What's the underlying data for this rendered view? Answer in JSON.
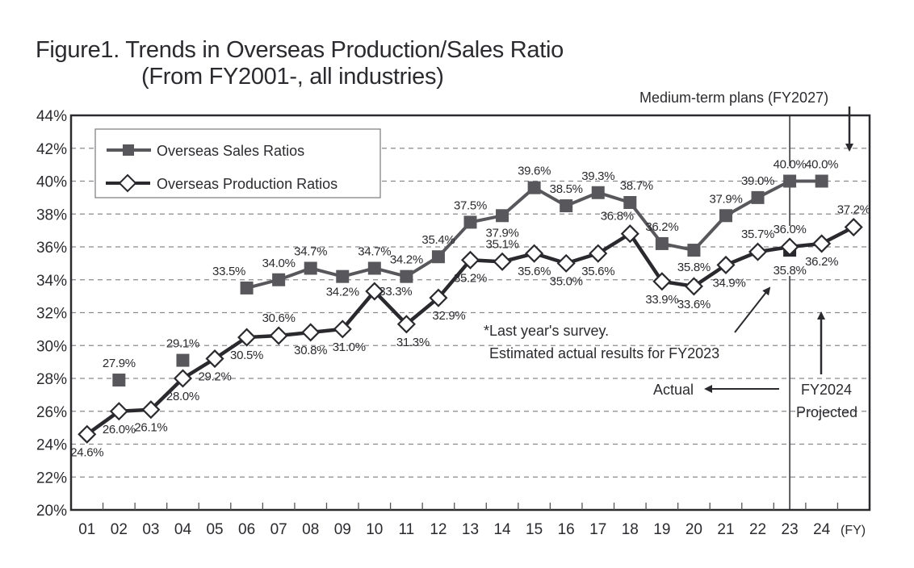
{
  "chart_data": {
    "type": "line",
    "title": "Figure1. Trends in Overseas Production/Sales Ratio",
    "subtitle": "(From FY2001-, all industries)",
    "xlabel": "(FY)",
    "ylabel": "",
    "ylim": [
      20,
      44
    ],
    "yticks": [
      20,
      22,
      24,
      26,
      28,
      30,
      32,
      34,
      36,
      38,
      40,
      42,
      44
    ],
    "ytick_suffix": "%",
    "grid": "horizontal dashed",
    "categories": [
      "01",
      "02",
      "03",
      "04",
      "05",
      "06",
      "07",
      "08",
      "09",
      "10",
      "11",
      "12",
      "13",
      "14",
      "15",
      "16",
      "17",
      "18",
      "19",
      "20",
      "21",
      "22",
      "23",
      "24",
      "FY2027"
    ],
    "x_tick_labels": [
      "01",
      "02",
      "03",
      "04",
      "05",
      "06",
      "07",
      "08",
      "09",
      "10",
      "11",
      "12",
      "13",
      "14",
      "15",
      "16",
      "17",
      "18",
      "19",
      "20",
      "21",
      "22",
      "23",
      "24"
    ],
    "series": [
      {
        "name": "Overseas Sales Ratios",
        "marker": "square",
        "color": "#58585c",
        "values": [
          null,
          27.9,
          null,
          29.1,
          null,
          33.5,
          34.0,
          34.7,
          34.2,
          34.7,
          34.2,
          35.4,
          37.5,
          37.9,
          39.6,
          38.5,
          39.3,
          38.7,
          36.2,
          35.8,
          37.9,
          39.0,
          40.0,
          40.0,
          null
        ],
        "labels": [
          null,
          "27.9%",
          null,
          "29.1%",
          null,
          "33.5%",
          "34.0%",
          "34.7%",
          "34.2%",
          "34.7%",
          "34.2%",
          "35.4%",
          "37.5%",
          "37.9%",
          "39.6%",
          "38.5%",
          "39.3%",
          "38.7%",
          "36.2%",
          "35.8%",
          "37.9%",
          "39.0%",
          "40.0%",
          "40.0%",
          null
        ]
      },
      {
        "name": "Overseas Production Ratios",
        "marker": "open-diamond",
        "color": "#2a2a2e",
        "values": [
          24.6,
          26.0,
          26.1,
          28.0,
          29.2,
          30.5,
          30.6,
          30.8,
          31.0,
          33.3,
          31.3,
          32.9,
          35.2,
          35.1,
          35.6,
          35.0,
          35.6,
          36.8,
          33.9,
          33.6,
          34.9,
          35.7,
          36.0,
          36.2,
          37.2
        ],
        "labels": [
          "24.6%",
          "26.0%",
          "26.1%",
          "28.0%",
          "29.2%",
          "30.5%",
          "30.6%",
          "30.8%",
          "31.0%",
          "33.3%",
          "31.3%",
          "32.9%",
          "35.2%",
          "35.1%",
          "35.6%",
          "35.0%",
          "35.6%",
          "36.8%",
          "33.9%",
          "33.6%",
          "34.9%",
          "35.7%",
          "36.0%",
          "36.2%",
          "37.2%"
        ]
      }
    ],
    "extra_points": [
      {
        "name": "Last year's survey estimate FY2023 (production)",
        "category": "23",
        "value": 35.8,
        "label": "35.8%",
        "marker": "filled-square"
      }
    ],
    "legend": {
      "position": "top-left",
      "entries": [
        "Overseas Sales Ratios",
        "Overseas Production Ratios"
      ]
    },
    "annotations": {
      "medium_term": "Medium-term plans (FY2027)",
      "survey_line1": "*Last year's survey.",
      "survey_line2": "Estimated actual results for FY2023",
      "actual": "Actual",
      "projected_line1": "FY2024",
      "projected_line2": "Projected"
    }
  }
}
